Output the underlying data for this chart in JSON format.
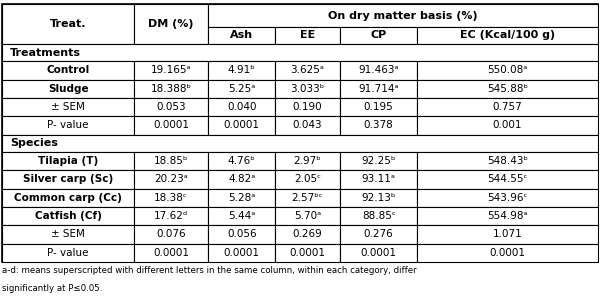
{
  "col_headers_row1": [
    "Treat.",
    "DM (%)",
    "On dry matter basis (%)"
  ],
  "col_headers_row2": [
    "",
    "",
    "Ash",
    "EE",
    "CP",
    "EC (Kcal/100 g)"
  ],
  "section_treatments": "Treatments",
  "section_species": "Species",
  "rows": [
    [
      "Control",
      "19.165ᵃ",
      "4.91ᵇ",
      "3.625ᵃ",
      "91.463ᵃ",
      "550.08ᵃ"
    ],
    [
      "Sludge",
      "18.388ᵇ",
      "5.25ᵃ",
      "3.033ᵇ",
      "91.714ᵃ",
      "545.88ᵇ"
    ],
    [
      "± SEM",
      "0.053",
      "0.040",
      "0.190",
      "0.195",
      "0.757"
    ],
    [
      "P- value",
      "0.0001",
      "0.0001",
      "0.043",
      "0.378",
      "0.001"
    ],
    [
      "Tilapia (T)",
      "18.85ᵇ",
      "4.76ᵇ",
      "2.97ᵇ",
      "92.25ᵇ",
      "548.43ᵇ"
    ],
    [
      "Silver carp (Sc)",
      "20.23ᵃ",
      "4.82ᵃ",
      "2.05ᶜ",
      "93.11ᵃ",
      "544.55ᶜ"
    ],
    [
      "Common carp (Cc)",
      "18.38ᶜ",
      "5.28ᵃ",
      "2.57ᵇᶜ",
      "92.13ᵇ",
      "543.96ᶜ"
    ],
    [
      "Catfish (Cf)",
      "17.62ᵈ",
      "5.44ᵃ",
      "5.70ᵃ",
      "88.85ᶜ",
      "554.98ᵃ"
    ],
    [
      "± SEM",
      "0.076",
      "0.056",
      "0.269",
      "0.276",
      "1.071"
    ],
    [
      "P- value",
      "0.0001",
      "0.0001",
      "0.0001",
      "0.0001",
      "0.0001"
    ]
  ],
  "footnote_line1": "a-d: means superscripted with different letters in the same column, within each category, differ",
  "footnote_line2": "significantly at P≤0.05.",
  "bg_color": "#ffffff",
  "border_color": "#000000",
  "font_size": 7.5,
  "header_font_size": 8.0
}
